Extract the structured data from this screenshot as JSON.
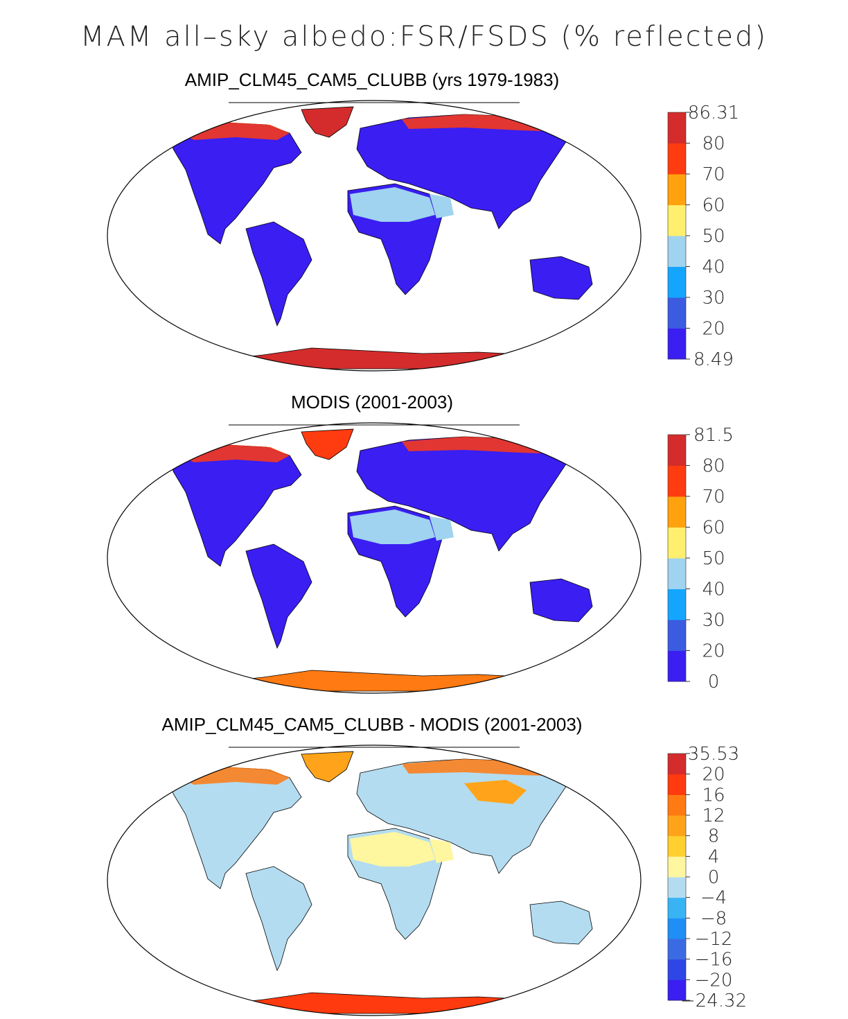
{
  "figure": {
    "title": "MAM all–sky albedo:FSR/FSDS (% reflected)"
  },
  "colors": {
    "land_low": "#3a1ef2",
    "antarctica": "#d42c2c",
    "desert": "#9fd3ef",
    "ocean": "#ffffff"
  },
  "panels": [
    {
      "title": "AMIP_CLM45_CAM5_CLUBB (yrs 1979-1983)",
      "colorbar": {
        "labels": [
          "86.31",
          "80",
          "70",
          "60",
          "50",
          "40",
          "30",
          "20",
          "8.49"
        ],
        "colors": [
          "#3a1ef2",
          "#3b5be0",
          "#14a6ff",
          "#9fd3ef",
          "#ffef6e",
          "#ffa20e",
          "#ff3b10",
          "#d42c2c"
        ]
      }
    },
    {
      "title": "MODIS (2001-2003)",
      "colorbar": {
        "labels": [
          "81.5",
          "80",
          "70",
          "60",
          "50",
          "40",
          "30",
          "20",
          "0"
        ],
        "colors": [
          "#3a1ef2",
          "#3b5be0",
          "#14a6ff",
          "#9fd3ef",
          "#ffef6e",
          "#ffa20e",
          "#ff3b10",
          "#d42c2c"
        ]
      }
    },
    {
      "title": "AMIP_CLM45_CAM5_CLUBB - MODIS (2001-2003)",
      "colorbar": {
        "labels": [
          "35.53",
          "20",
          "16",
          "12",
          "8",
          "4",
          "0",
          "−4",
          "−8",
          "−12",
          "−16",
          "−20",
          "−24.32"
        ],
        "colors": [
          "#3a1ef2",
          "#2f46e6",
          "#3b6be3",
          "#1f8ff5",
          "#38b4f5",
          "#b3dcf0",
          "#fff6a0",
          "#ffd030",
          "#ffa41a",
          "#ff7a12",
          "#ff3a0e",
          "#d42c2c"
        ]
      }
    }
  ]
}
